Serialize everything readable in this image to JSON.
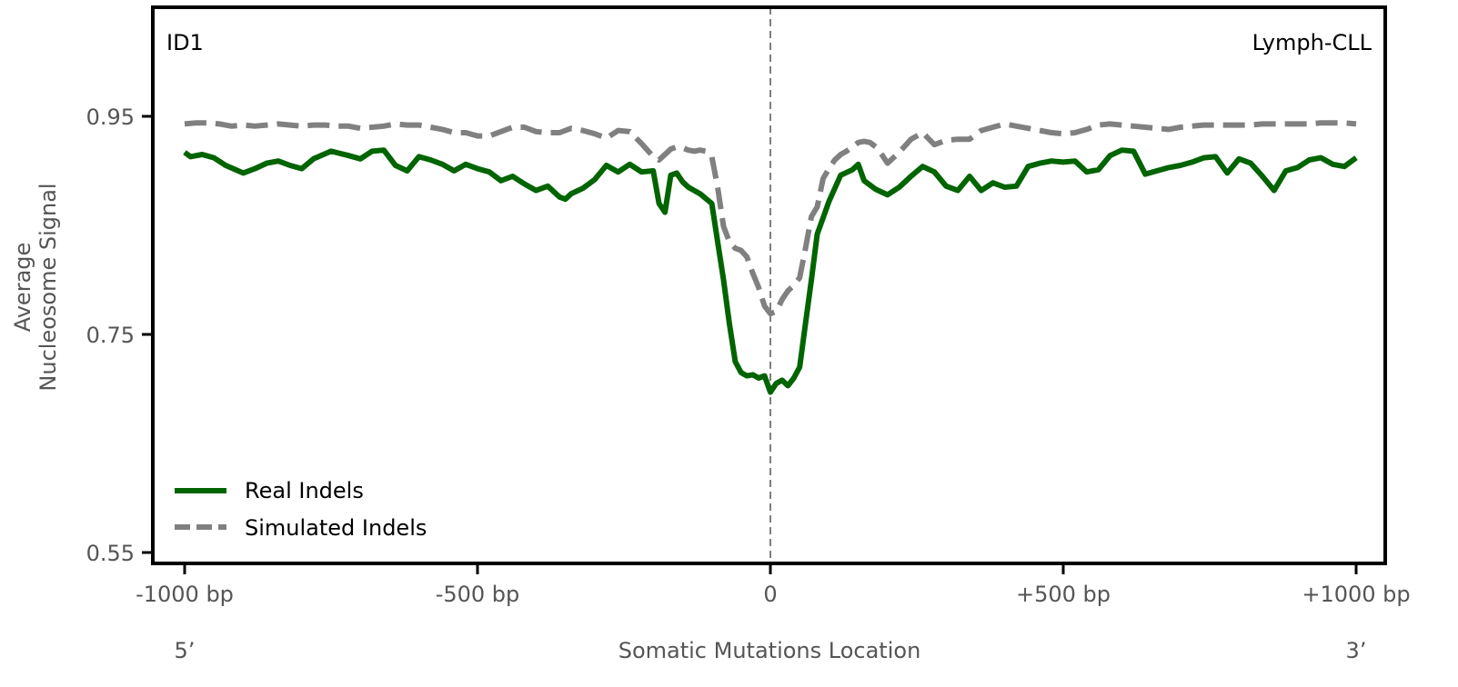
{
  "chart_data": {
    "type": "line",
    "panel_label": "ID1",
    "cancer_type": "Lymph-CLL",
    "ylabel_line1": "Average",
    "ylabel_line2": "Nucleosome Signal",
    "xlabel": "Somatic Mutations Location",
    "end_left": "5’",
    "end_right": "3’",
    "xlim": [
      -1000,
      1000
    ],
    "ylim": [
      0.55,
      1.05
    ],
    "yticks": [
      0.55,
      0.75,
      0.95
    ],
    "ytick_labels": [
      "0.55",
      "0.75",
      "0.95"
    ],
    "xticks": [
      -1000,
      -500,
      0,
      500,
      1000
    ],
    "xtick_labels": [
      "-1000 bp",
      "-500 bp",
      "0",
      "+500 bp",
      "+1000 bp"
    ],
    "center_line_x": 0,
    "legend_position": "lower-left",
    "series": [
      {
        "name": "Real Indels",
        "style": "solid",
        "color": "#006400",
        "x": [
          -1000,
          -990,
          -970,
          -950,
          -930,
          -900,
          -880,
          -860,
          -840,
          -820,
          -800,
          -780,
          -750,
          -720,
          -700,
          -680,
          -660,
          -640,
          -620,
          -600,
          -580,
          -560,
          -540,
          -520,
          -500,
          -480,
          -460,
          -440,
          -420,
          -400,
          -380,
          -360,
          -350,
          -340,
          -320,
          -300,
          -280,
          -260,
          -240,
          -220,
          -200,
          -190,
          -180,
          -170,
          -160,
          -150,
          -140,
          -120,
          -100,
          -90,
          -80,
          -70,
          -60,
          -50,
          -40,
          -30,
          -20,
          -10,
          0,
          10,
          20,
          30,
          40,
          50,
          60,
          70,
          80,
          90,
          100,
          120,
          140,
          150,
          160,
          180,
          200,
          220,
          240,
          260,
          280,
          300,
          320,
          340,
          360,
          380,
          400,
          420,
          440,
          460,
          480,
          500,
          520,
          540,
          560,
          580,
          600,
          620,
          640,
          660,
          680,
          700,
          720,
          740,
          760,
          780,
          800,
          820,
          840,
          860,
          880,
          900,
          920,
          940,
          960,
          980,
          1000
        ],
        "y": [
          0.917,
          0.913,
          0.915,
          0.912,
          0.905,
          0.898,
          0.902,
          0.907,
          0.909,
          0.905,
          0.902,
          0.911,
          0.918,
          0.914,
          0.911,
          0.918,
          0.919,
          0.905,
          0.9,
          0.913,
          0.91,
          0.906,
          0.9,
          0.906,
          0.902,
          0.899,
          0.891,
          0.895,
          0.888,
          0.882,
          0.886,
          0.876,
          0.874,
          0.879,
          0.884,
          0.892,
          0.905,
          0.899,
          0.906,
          0.899,
          0.9,
          0.87,
          0.862,
          0.896,
          0.898,
          0.89,
          0.885,
          0.879,
          0.87,
          0.835,
          0.8,
          0.76,
          0.725,
          0.715,
          0.712,
          0.713,
          0.71,
          0.712,
          0.697,
          0.705,
          0.708,
          0.703,
          0.71,
          0.72,
          0.76,
          0.8,
          0.842,
          0.857,
          0.872,
          0.896,
          0.901,
          0.906,
          0.891,
          0.883,
          0.878,
          0.885,
          0.895,
          0.904,
          0.899,
          0.886,
          0.882,
          0.895,
          0.882,
          0.889,
          0.885,
          0.886,
          0.904,
          0.907,
          0.909,
          0.908,
          0.909,
          0.899,
          0.901,
          0.914,
          0.919,
          0.918,
          0.897,
          0.9,
          0.903,
          0.905,
          0.908,
          0.912,
          0.913,
          0.898,
          0.911,
          0.907,
          0.895,
          0.882,
          0.9,
          0.903,
          0.91,
          0.912,
          0.906,
          0.904,
          0.912
        ]
      },
      {
        "name": "Simulated Indels",
        "style": "dashed",
        "color": "#808080",
        "x": [
          -1000,
          -980,
          -960,
          -940,
          -920,
          -900,
          -880,
          -860,
          -840,
          -820,
          -800,
          -780,
          -760,
          -740,
          -720,
          -700,
          -680,
          -660,
          -640,
          -620,
          -600,
          -580,
          -560,
          -540,
          -520,
          -500,
          -480,
          -460,
          -440,
          -420,
          -400,
          -380,
          -360,
          -340,
          -320,
          -300,
          -280,
          -260,
          -240,
          -220,
          -200,
          -190,
          -180,
          -170,
          -160,
          -150,
          -140,
          -130,
          -120,
          -110,
          -100,
          -90,
          -80,
          -70,
          -60,
          -50,
          -40,
          -30,
          -20,
          -10,
          0,
          10,
          20,
          30,
          40,
          50,
          60,
          70,
          80,
          90,
          100,
          110,
          120,
          130,
          140,
          150,
          160,
          170,
          180,
          190,
          200,
          220,
          240,
          260,
          280,
          300,
          320,
          340,
          360,
          380,
          400,
          420,
          440,
          460,
          480,
          500,
          520,
          540,
          560,
          580,
          600,
          620,
          640,
          660,
          680,
          700,
          720,
          740,
          760,
          780,
          800,
          820,
          840,
          860,
          880,
          900,
          920,
          940,
          960,
          980,
          1000
        ],
        "y": [
          0.943,
          0.944,
          0.944,
          0.943,
          0.941,
          0.942,
          0.941,
          0.942,
          0.943,
          0.942,
          0.941,
          0.942,
          0.942,
          0.941,
          0.941,
          0.939,
          0.94,
          0.941,
          0.943,
          0.942,
          0.942,
          0.94,
          0.938,
          0.935,
          0.935,
          0.932,
          0.932,
          0.936,
          0.94,
          0.94,
          0.936,
          0.935,
          0.935,
          0.939,
          0.937,
          0.934,
          0.93,
          0.937,
          0.936,
          0.925,
          0.913,
          0.91,
          0.915,
          0.92,
          0.922,
          0.921,
          0.919,
          0.918,
          0.919,
          0.918,
          0.913,
          0.885,
          0.849,
          0.835,
          0.829,
          0.827,
          0.821,
          0.806,
          0.793,
          0.776,
          0.769,
          0.771,
          0.782,
          0.79,
          0.795,
          0.802,
          0.829,
          0.858,
          0.867,
          0.893,
          0.902,
          0.91,
          0.915,
          0.918,
          0.922,
          0.926,
          0.927,
          0.926,
          0.922,
          0.915,
          0.907,
          0.917,
          0.929,
          0.935,
          0.924,
          0.928,
          0.929,
          0.929,
          0.937,
          0.94,
          0.943,
          0.941,
          0.939,
          0.937,
          0.935,
          0.934,
          0.935,
          0.938,
          0.942,
          0.943,
          0.942,
          0.941,
          0.94,
          0.939,
          0.938,
          0.94,
          0.941,
          0.942,
          0.942,
          0.942,
          0.942,
          0.942,
          0.943,
          0.943,
          0.943,
          0.943,
          0.943,
          0.944,
          0.944,
          0.944,
          0.943
        ]
      }
    ]
  }
}
